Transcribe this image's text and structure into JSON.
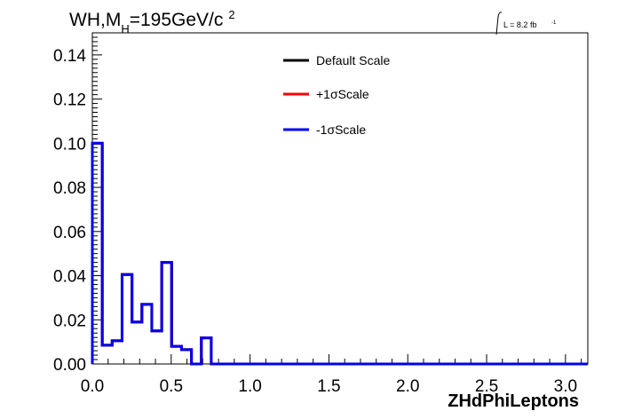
{
  "chart_data": {
    "type": "line",
    "title_main": "WH,M",
    "title_sub": "H",
    "title_rest": "=195GeV/c",
    "title_sup": "2",
    "lumi_label": "L = 8.2 fb",
    "lumi_sup": "-1",
    "xlabel": "ZHdPhiLeptons",
    "ylabel": "",
    "xlim": [
      0,
      3.1416
    ],
    "ylim": [
      0,
      0.15
    ],
    "grid": false,
    "legend_position": "top-center",
    "x_ticks": [
      "0.0",
      "0.5",
      "1.0",
      "1.5",
      "2.0",
      "2.5",
      "3.0"
    ],
    "y_ticks": [
      "0.00",
      "0.02",
      "0.04",
      "0.06",
      "0.08",
      "0.10",
      "0.12",
      "0.14"
    ],
    "bin_edges": [
      0.0,
      0.0628,
      0.1257,
      0.1885,
      0.2513,
      0.3142,
      0.377,
      0.4398,
      0.5027,
      0.5655,
      0.6283,
      0.6912,
      0.754,
      0.8168,
      3.1416
    ],
    "series": [
      {
        "name": "Default Scale",
        "color": "#000000",
        "values": [
          0.1,
          0.0085,
          0.0105,
          0.0405,
          0.019,
          0.027,
          0.015,
          0.046,
          0.008,
          0.0065,
          0.0,
          0.0118,
          0.0,
          0.0
        ]
      },
      {
        "name": "+1σScale",
        "color": "#ff0000",
        "values": [
          0.1,
          0.0085,
          0.0105,
          0.0405,
          0.019,
          0.027,
          0.015,
          0.046,
          0.008,
          0.0065,
          0.0,
          0.0118,
          0.0,
          0.0
        ]
      },
      {
        "name": "-1σScale",
        "color": "#0000ee",
        "values": [
          0.1,
          0.0085,
          0.0105,
          0.0405,
          0.019,
          0.027,
          0.015,
          0.046,
          0.008,
          0.0065,
          0.0,
          0.0118,
          0.0,
          0.0
        ]
      }
    ]
  }
}
